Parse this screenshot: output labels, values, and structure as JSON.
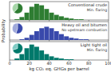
{
  "chart_data": [
    {
      "type": "histogram",
      "title": "Conventional crude",
      "annotation": "Min. flaring",
      "color": "#2e7d32",
      "bins": [
        0,
        5,
        10,
        15,
        20,
        25,
        30,
        35,
        40,
        45,
        50,
        55,
        60,
        65,
        70,
        75,
        80,
        85,
        90,
        95,
        100
      ],
      "counts": [
        0,
        1,
        4,
        10,
        18,
        22,
        20,
        15,
        10,
        7,
        5,
        3,
        2,
        1,
        1,
        0,
        0,
        0,
        0,
        0
      ],
      "xlim": [
        0,
        100
      ],
      "xticks": [
        0,
        20,
        40,
        60,
        80,
        100
      ],
      "ylim": [
        0,
        25
      ],
      "tick_labels": false
    },
    {
      "type": "pie",
      "values": [
        62,
        38
      ],
      "colors": [
        "#2e7d32",
        "#a5d6a7"
      ]
    },
    {
      "type": "histogram",
      "title": "Heavy oil and bitumen",
      "annotation": "No upstream combustion",
      "color": "#3949ab",
      "y_label": "Probability",
      "bins": [
        0,
        5,
        10,
        15,
        20,
        25,
        30,
        35,
        40,
        45,
        50,
        55,
        60,
        65,
        70,
        75,
        80,
        85,
        90,
        95,
        100
      ],
      "counts": [
        0,
        0,
        1,
        3,
        7,
        12,
        16,
        18,
        16,
        12,
        8,
        5,
        3,
        2,
        1,
        1,
        0,
        0,
        0,
        0
      ],
      "xlim": [
        0,
        100
      ],
      "xticks": [
        0,
        20,
        40,
        60,
        80,
        100
      ],
      "ylim": [
        0,
        25
      ],
      "tick_labels": false
    },
    {
      "type": "pie",
      "values": [
        55,
        45
      ],
      "colors": [
        "#3949ab",
        "#9fa8da"
      ]
    },
    {
      "type": "histogram",
      "title": "Light tight oil",
      "annotation": "Min. flaring",
      "color": "#00796b",
      "x_label": "kg CO₂ eq. GHGs per barrel",
      "bins": [
        0,
        5,
        10,
        15,
        20,
        25,
        30,
        35,
        40,
        45,
        50,
        55,
        60,
        65,
        70,
        75,
        80,
        85,
        90,
        95,
        100
      ],
      "counts": [
        0,
        2,
        8,
        16,
        21,
        18,
        13,
        8,
        5,
        3,
        2,
        1,
        1,
        0,
        0,
        0,
        0,
        0,
        0,
        0
      ],
      "xlim": [
        0,
        100
      ],
      "xticks": [
        0,
        20,
        40,
        60,
        80,
        100
      ],
      "ylim": [
        0,
        25
      ],
      "tick_labels": "x"
    },
    {
      "type": "pie",
      "values": [
        70,
        30
      ],
      "colors": [
        "#00796b",
        "#80cbc4"
      ]
    }
  ]
}
